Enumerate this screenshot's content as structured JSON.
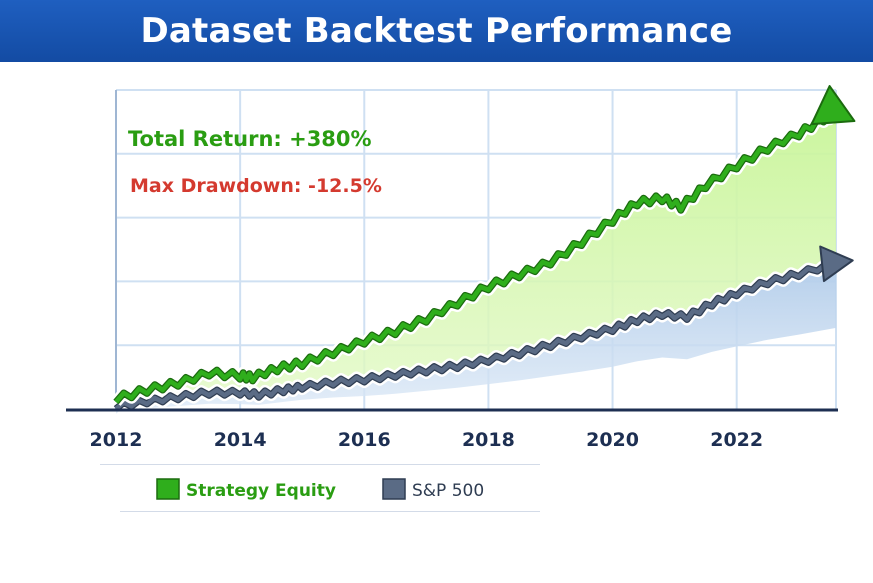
{
  "chart_data": {
    "type": "line",
    "title": "Dataset Backtest Performance",
    "xlabel": "",
    "ylabel": "",
    "x_ticks": [
      "2012",
      "2014",
      "2016",
      "2018",
      "2020",
      "2022"
    ],
    "xlim": [
      2012,
      2023.6
    ],
    "ylim": [
      0,
      500
    ],
    "grid": true,
    "legend_position": "bottom",
    "annotations": [
      {
        "text": "Total Return: +380%",
        "color": "#2a9d12"
      },
      {
        "text": "Max Drawdown: -12.5%",
        "color": "#d43a2f"
      }
    ],
    "series": [
      {
        "name": "Strategy Equity",
        "color": "#2fae1c",
        "x": [
          2012,
          2012.5,
          2013,
          2013.5,
          2014,
          2014.2,
          2014.6,
          2015,
          2015.5,
          2016,
          2016.5,
          2017,
          2017.5,
          2018,
          2018.5,
          2019,
          2019.5,
          2020,
          2020.4,
          2020.8,
          2021.1,
          2021.5,
          2022,
          2022.5,
          2023,
          2023.4,
          2023.6
        ],
        "values": [
          15,
          30,
          42,
          58,
          52,
          48,
          62,
          72,
          90,
          108,
          122,
          140,
          165,
          192,
          212,
          232,
          262,
          295,
          322,
          330,
          318,
          352,
          382,
          408,
          430,
          455,
          465
        ]
      },
      {
        "name": "S&P 500",
        "color": "#5a6b85",
        "x": [
          2012,
          2012.5,
          2013,
          2013.5,
          2014,
          2014.3,
          2014.7,
          2015,
          2015.5,
          2016,
          2016.5,
          2017,
          2017.5,
          2018,
          2018.5,
          2019,
          2019.5,
          2020,
          2020.4,
          2020.8,
          2021.2,
          2021.6,
          2022,
          2022.5,
          2023,
          2023.6
        ],
        "values": [
          5,
          13,
          19,
          25,
          24,
          22,
          30,
          36,
          42,
          46,
          52,
          60,
          68,
          78,
          88,
          100,
          112,
          125,
          140,
          150,
          145,
          165,
          180,
          198,
          212,
          230
        ]
      }
    ]
  }
}
